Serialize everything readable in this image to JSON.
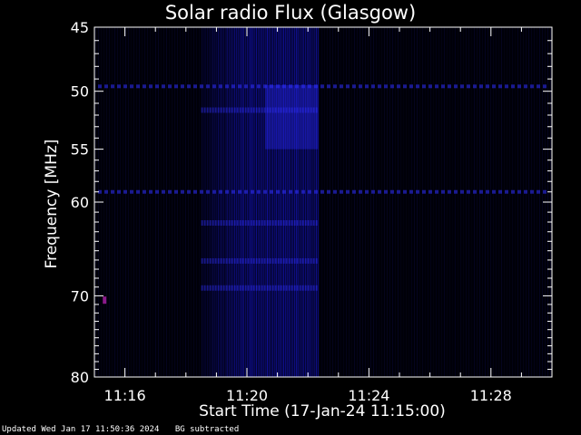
{
  "footer": {
    "updated": "Updated Wed Jan 17 11:50:36 2024",
    "note": "BG subtracted"
  },
  "colors": {
    "background": "#000000",
    "axes": "#ffffff",
    "signal": "#1a1aff",
    "hotspot": "#8a1a8a"
  },
  "chart_data": {
    "type": "heatmap",
    "title": "Solar radio Flux (Glasgow)",
    "xlabel": "Start Time (17-Jan-24 11:15:00)",
    "ylabel": "Frequency [MHz]",
    "y_scale": "log",
    "ylim": [
      45,
      80
    ],
    "y_reversed": true,
    "xlim": [
      "11:15:00",
      "11:30:00"
    ],
    "y_ticks": [
      45,
      50,
      55,
      60,
      70,
      80
    ],
    "x_tick_labels": [
      "11:16",
      "11:20",
      "11:24",
      "11:28"
    ],
    "x_tick_times_min": [
      1,
      5,
      9,
      13
    ],
    "burst": {
      "start": "11:18:30",
      "peak_start": "11:20:00",
      "end": "11:22:20"
    },
    "horizontal_bands_mhz": [
      49.6,
      51.5,
      59.0,
      62.0,
      66.0,
      69.0
    ],
    "hotspot": {
      "time": "11:15:20",
      "freq_mhz": 70.5
    }
  }
}
